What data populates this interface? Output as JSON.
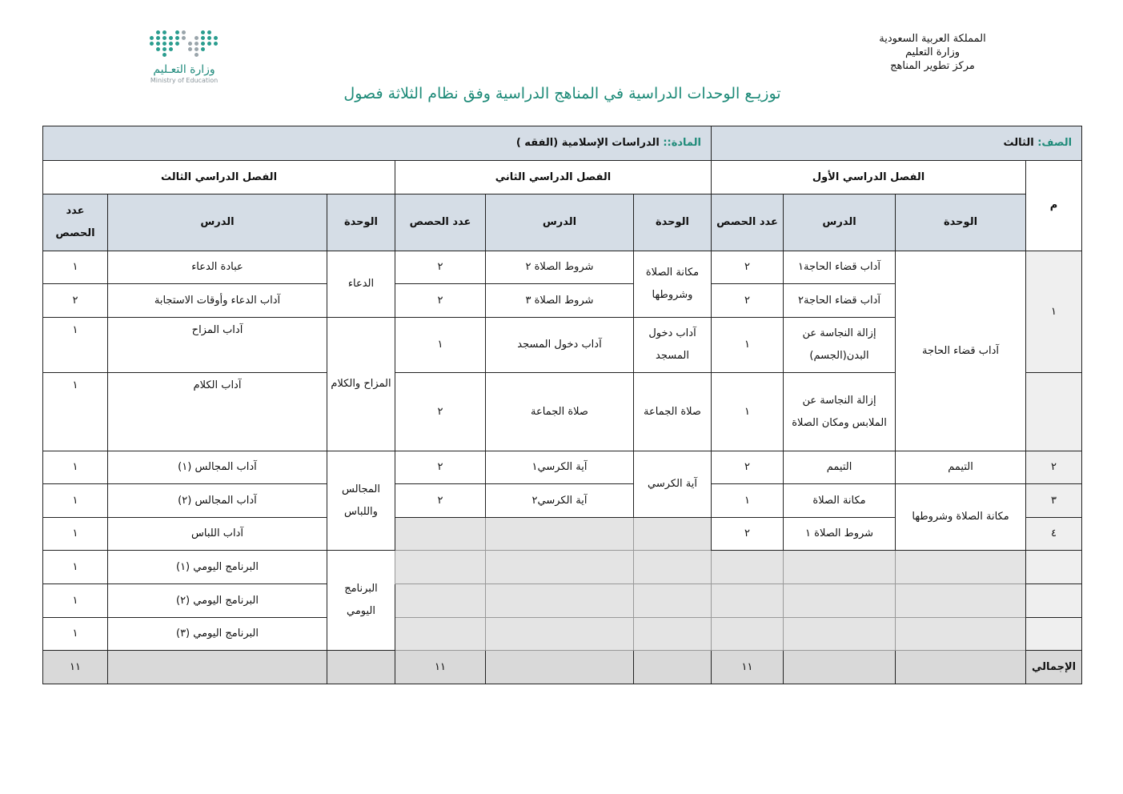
{
  "header": {
    "org_lines": [
      "المملكة العربية السعودية",
      "وزارة التعليم",
      "مركز تطوير المناهج"
    ],
    "logo_ar": "وزارة التعـليم",
    "logo_en": "Ministry of Education",
    "title": "توزيـع الوحدات الدراسية في المناهج الدراسية وفق نظام الثلاثة فصول"
  },
  "colors": {
    "accent": "#1d8a78",
    "header_bg": "#d5dde6",
    "shaded": "#e4e4e4",
    "total_bg": "#d9d9d9"
  },
  "table": {
    "grade_label": "الصف:",
    "grade_value": " الثالث",
    "subject_label": "المادة::",
    "subject_value": " الدراسات الإسلامية (الفقه )",
    "index_header": "م",
    "semesters": [
      "الفصل الدراسي الأول",
      "الفصل الدراسي الثاني",
      "الفصل الدراسي الثالث"
    ],
    "column_headers": [
      "الوحدة",
      "الدرس",
      "عدد الحصص",
      "الوحدة",
      "الدرس",
      "عدد الحصص",
      "الوحدة",
      "الدرس",
      "عدد الحصص"
    ],
    "rows": [
      [
        {
          "t": "١",
          "rs": 3,
          "c": "m"
        },
        {
          "t": "آداب قضاء الحاجة",
          "rs": 4
        },
        {
          "t": "آداب قضاء الحاجة١"
        },
        {
          "t": "٢"
        },
        {
          "t": "مكانة الصلاة وشروطها",
          "rs": 2
        },
        {
          "t": "شروط الصلاة ٢"
        },
        {
          "t": "٢"
        },
        {
          "t": "الدعاء",
          "rs": 2
        },
        {
          "t": "عبادة الدعاء"
        },
        {
          "t": "١"
        }
      ],
      [
        {
          "t": "آداب قضاء الحاجة٢"
        },
        {
          "t": "٢"
        },
        {
          "t": "شروط الصلاة ٣"
        },
        {
          "t": "٢"
        },
        {
          "t": "آداب الدعاء وأوقات الاستجابة"
        },
        {
          "t": "٢"
        }
      ],
      [
        {
          "t": "إزالة النجاسة عن البدن(الجسم)"
        },
        {
          "t": "١"
        },
        {
          "t": "آداب دخول المسجد"
        },
        {
          "t": "آداب دخول المسجد"
        },
        {
          "t": "١"
        },
        {
          "t": "المزاح والكلام",
          "rs": 2
        },
        {
          "t": "آداب المزاح",
          "c": "top"
        },
        {
          "t": "١",
          "c": "top"
        }
      ],
      [
        {
          "t": "",
          "c": "m"
        },
        {
          "t": "إزالة النجاسة عن الملابس ومكان الصلاة"
        },
        {
          "t": "١"
        },
        {
          "t": "صلاة الجماعة"
        },
        {
          "t": "صلاة الجماعة"
        },
        {
          "t": "٢"
        },
        {
          "t": "آداب الكلام",
          "c": "top"
        },
        {
          "t": "١",
          "c": "top"
        }
      ],
      [
        {
          "t": "٢",
          "c": "m"
        },
        {
          "t": "التيمم"
        },
        {
          "t": "التيمم"
        },
        {
          "t": "٢"
        },
        {
          "t": "آية الكرسي",
          "rs": 2
        },
        {
          "t": "آية الكرسي١"
        },
        {
          "t": "٢"
        },
        {
          "t": "المجالس واللباس",
          "rs": 3
        },
        {
          "t": "آداب المجالس (١)"
        },
        {
          "t": "١"
        }
      ],
      [
        {
          "t": "٣",
          "c": "m"
        },
        {
          "t": "مكانة الصلاة وشروطها",
          "rs": 2
        },
        {
          "t": "مكانة الصلاة"
        },
        {
          "t": "١"
        },
        {
          "t": "آية الكرسي٢"
        },
        {
          "t": "٢"
        },
        {
          "t": "آداب المجالس (٢)"
        },
        {
          "t": "١"
        }
      ],
      [
        {
          "t": "٤",
          "c": "m"
        },
        {
          "t": "شروط الصلاة ١"
        },
        {
          "t": "٢"
        },
        {
          "t": "",
          "c": "shade"
        },
        {
          "t": "",
          "c": "shade"
        },
        {
          "t": "",
          "c": "shade"
        },
        {
          "t": "آداب اللباس"
        },
        {
          "t": "١"
        }
      ],
      [
        {
          "t": "",
          "c": "m"
        },
        {
          "t": "",
          "c": "shade"
        },
        {
          "t": "",
          "c": "shade"
        },
        {
          "t": "",
          "c": "shade"
        },
        {
          "t": "",
          "c": "shade"
        },
        {
          "t": "",
          "c": "shade"
        },
        {
          "t": "",
          "c": "shade"
        },
        {
          "t": "البرنامج اليومي",
          "rs": 3
        },
        {
          "t": "البرنامج اليومي (١)"
        },
        {
          "t": "١"
        }
      ],
      [
        {
          "t": "",
          "c": "m"
        },
        {
          "t": "",
          "c": "shade"
        },
        {
          "t": "",
          "c": "shade"
        },
        {
          "t": "",
          "c": "shade"
        },
        {
          "t": "",
          "c": "shade"
        },
        {
          "t": "",
          "c": "shade"
        },
        {
          "t": "",
          "c": "shade"
        },
        {
          "t": "البرنامج اليومي (٢)"
        },
        {
          "t": "١"
        }
      ],
      [
        {
          "t": "",
          "c": "m"
        },
        {
          "t": "",
          "c": "shade"
        },
        {
          "t": "",
          "c": "shade"
        },
        {
          "t": "",
          "c": "shade"
        },
        {
          "t": "",
          "c": "shade"
        },
        {
          "t": "",
          "c": "shade"
        },
        {
          "t": "",
          "c": "shade"
        },
        {
          "t": "البرنامج اليومي (٣)"
        },
        {
          "t": "١"
        }
      ]
    ],
    "total": [
      "الإجمالي",
      "",
      "",
      "١١",
      "",
      "",
      "١١",
      "",
      "",
      "١١"
    ]
  }
}
